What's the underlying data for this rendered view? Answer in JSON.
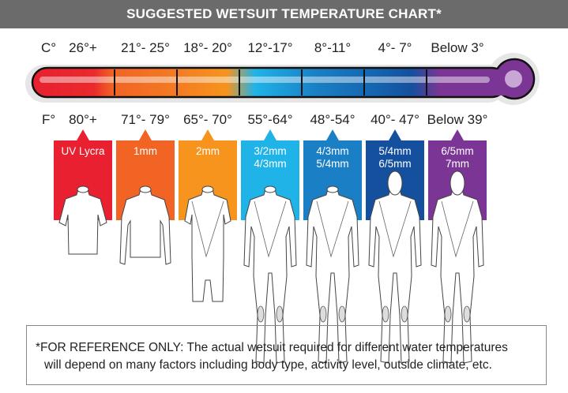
{
  "header": {
    "title": "SUGGESTED WETSUIT TEMPERATURE CHART*"
  },
  "celsius": {
    "unit": "C°",
    "ranges": [
      "26°+",
      "21°- 25°",
      "18°- 20°",
      "12°-17°",
      "8°-11°",
      "4°- 7°",
      "Below 3°"
    ]
  },
  "fahrenheit": {
    "unit": "F°",
    "ranges": [
      "80°+",
      "71°- 79°",
      "65°- 70°",
      "55°-64°",
      "48°-54°",
      "40°- 47°",
      "Below 39°"
    ]
  },
  "suits": [
    {
      "lines": [
        "UV Lycra"
      ],
      "color": "#e8202f",
      "type": "short-sleeve-top"
    },
    {
      "lines": [
        "1mm"
      ],
      "color": "#f16424",
      "type": "long-sleeve-top"
    },
    {
      "lines": [
        "2mm"
      ],
      "color": "#f7941d",
      "type": "shorty"
    },
    {
      "lines": [
        "3/2mm",
        "4/3mm"
      ],
      "color": "#1fb3e8",
      "type": "full"
    },
    {
      "lines": [
        "4/3mm",
        "5/4mm"
      ],
      "color": "#1a7fc4",
      "type": "full"
    },
    {
      "lines": [
        "5/4mm",
        "6/5mm"
      ],
      "color": "#14509e",
      "type": "full-hood"
    },
    {
      "lines": [
        "6/5mm",
        "7mm"
      ],
      "color": "#7b3594",
      "type": "full-hood"
    }
  ],
  "note": {
    "line1": "*FOR REFERENCE ONLY: The actual wetsuit required for different water temperatures",
    "line2": "will depend on many factors including body type, activity level, outside climate, etc."
  }
}
